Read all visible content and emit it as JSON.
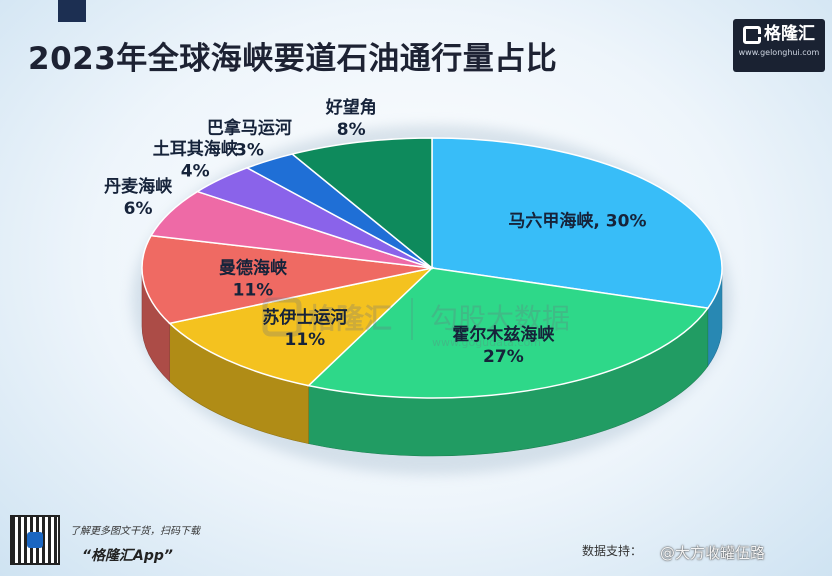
{
  "header": {
    "title": "2023年全球海峡要道石油通行量占比"
  },
  "brand": {
    "logo_name": "格隆汇",
    "logo_url": "www.gelonghui.com"
  },
  "watermark": {
    "left": "格隆汇",
    "right": "勾股大数据",
    "right_url": "www.gogudata.com"
  },
  "chart_data": {
    "type": "pie",
    "title": "2023年全球海峡要道石油通行量占比",
    "unit": "%",
    "slices": [
      {
        "name": "马六甲海峡",
        "value": 30,
        "label_text": "马六甲海峡, 30%",
        "color": "#38bdf8"
      },
      {
        "name": "霍尔木兹海峡",
        "value": 27,
        "label_text": "27%",
        "color": "#2ed889"
      },
      {
        "name": "苏伊士运河",
        "value": 11,
        "label_text": "11%",
        "color": "#f4c21f"
      },
      {
        "name": "曼德海峡",
        "value": 11,
        "label_text": "11%",
        "color": "#ef6a63"
      },
      {
        "name": "丹麦海峡",
        "value": 6,
        "label_text": "6%",
        "color": "#ee6aa6"
      },
      {
        "name": "土耳其海峡",
        "value": 4,
        "label_text": "4%",
        "color": "#8a63ea"
      },
      {
        "name": "巴拿马运河",
        "value": 3,
        "label_text": "3%",
        "color": "#1f6fd6"
      },
      {
        "name": "好望角",
        "value": 8,
        "label_text": "8%",
        "color": "#0e8a5c"
      }
    ]
  },
  "footer": {
    "tip": "了解更多图文干货，扫码下载",
    "app": "“格隆汇App”",
    "source": "数据支持：",
    "weibo": "@大方收罐伍路"
  }
}
